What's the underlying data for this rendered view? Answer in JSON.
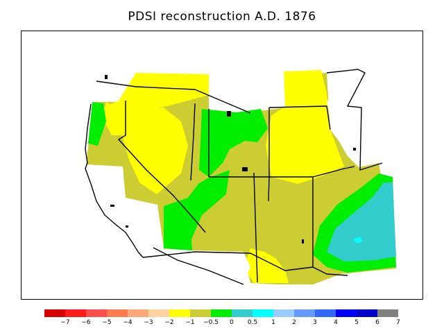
{
  "title": "PDSI reconstruction A.D. 1876",
  "legend": {
    "colors": [
      "#d90000",
      "#ff1a1a",
      "#ff4d4d",
      "#ff7b4d",
      "#ffa77a",
      "#ffd2a0",
      "#ffff00",
      "#cccc33",
      "#00ee00",
      "#33cccc",
      "#00ffff",
      "#99ccff",
      "#6699ff",
      "#3366ff",
      "#0000ff",
      "#0000cc",
      "#808080"
    ],
    "labels": [
      "−7",
      "−6",
      "−5",
      "−4",
      "−3",
      "−2",
      "−1",
      "−0.5",
      "0",
      "0.5",
      "1",
      "2",
      "3",
      "4",
      "5",
      "6",
      "7"
    ]
  },
  "map": {
    "fill_colors": {
      "olive": "#cccc33",
      "yellow": "#ffff00",
      "green": "#00ee00",
      "teal": "#33cccc",
      "cyan": "#00ffff"
    }
  }
}
